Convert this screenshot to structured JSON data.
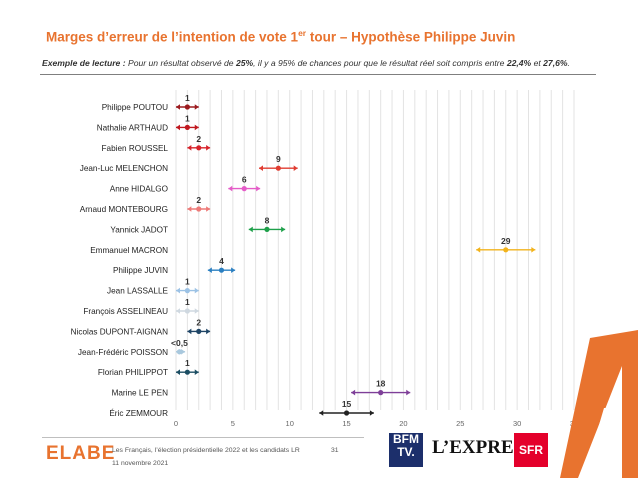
{
  "header": {
    "title_main": "Marges d’erreur de l’intention de vote 1",
    "title_sup": "er",
    "title_rest": " tour – Hypothèse Philippe Juvin",
    "reading_prefix": "Exemple de lecture :",
    "reading_part1": " Pour un résultat observé de ",
    "reading_value": "25%",
    "reading_part2": ", il y a 95% de chances pour que le résultat réel soit compris entre ",
    "reading_low": "22,4%",
    "reading_and": " et ",
    "reading_high": "27,6%",
    "reading_end": "."
  },
  "chart_data": {
    "type": "scatter",
    "subtype": "error-bar",
    "xlim": [
      0,
      35
    ],
    "x_ticks": [
      0,
      5,
      10,
      15,
      20,
      25,
      30,
      35
    ],
    "grid": "vertical",
    "candidates": [
      {
        "name": "Philippe POUTOU",
        "label": "1",
        "value": 1,
        "low": 0,
        "high": 2,
        "color": "#9b1b1f"
      },
      {
        "name": "Nathalie ARTHAUD",
        "label": "1",
        "value": 1,
        "low": 0,
        "high": 2,
        "color": "#c0181f"
      },
      {
        "name": "Fabien ROUSSEL",
        "label": "2",
        "value": 2,
        "low": 1,
        "high": 3,
        "color": "#d7222a"
      },
      {
        "name": "Jean-Luc MELENCHON",
        "label": "9",
        "value": 9,
        "low": 7.3,
        "high": 10.7,
        "color": "#e03c31"
      },
      {
        "name": "Anne HIDALGO",
        "label": "6",
        "value": 6,
        "low": 4.6,
        "high": 7.4,
        "color": "#e55bc8"
      },
      {
        "name": "Arnaud MONTEBOURG",
        "label": "2",
        "value": 2,
        "low": 1,
        "high": 3,
        "color": "#ee7a78"
      },
      {
        "name": "Yannick JADOT",
        "label": "8",
        "value": 8,
        "low": 6.4,
        "high": 9.6,
        "color": "#1ea04a"
      },
      {
        "name": "Emmanuel MACRON",
        "label": "29",
        "value": 29,
        "low": 26.4,
        "high": 31.6,
        "color": "#f2b31c"
      },
      {
        "name": "Philippe JUVIN",
        "label": "4",
        "value": 4,
        "low": 2.8,
        "high": 5.2,
        "color": "#2a7fc1"
      },
      {
        "name": "Jean LASSALLE",
        "label": "1",
        "value": 1,
        "low": 0,
        "high": 2,
        "color": "#9cc2e5"
      },
      {
        "name": "François ASSELINEAU",
        "label": "1",
        "value": 1,
        "low": 0,
        "high": 2,
        "color": "#cfd8e0"
      },
      {
        "name": "Nicolas DUPONT-AIGNAN",
        "label": "2",
        "value": 2,
        "low": 1,
        "high": 3,
        "color": "#1f4566"
      },
      {
        "name": "Jean-Frédéric POISSON",
        "label": "<0,5",
        "value": 0.3,
        "low": 0,
        "high": 0.8,
        "color": "#a9c8dd"
      },
      {
        "name": "Florian PHILIPPOT",
        "label": "1",
        "value": 1,
        "low": 0,
        "high": 2,
        "color": "#1c4e63"
      },
      {
        "name": "Marine LE PEN",
        "label": "18",
        "value": 18,
        "low": 15.4,
        "high": 20.6,
        "color": "#7e3f98"
      },
      {
        "name": "Éric ZEMMOUR",
        "label": "15",
        "value": 15,
        "low": 12.6,
        "high": 17.4,
        "color": "#222222"
      }
    ]
  },
  "footer": {
    "brand": "ELABE",
    "note": "Les Français, l’élection présidentielle 2022 et les candidats LR",
    "date": "11 novembre 2021",
    "page": "31",
    "partner_bfm_line1": "BFM",
    "partner_bfm_line2": "TV.",
    "partner_express": "L’EXPRESS",
    "partner_sfr": "SFR"
  }
}
